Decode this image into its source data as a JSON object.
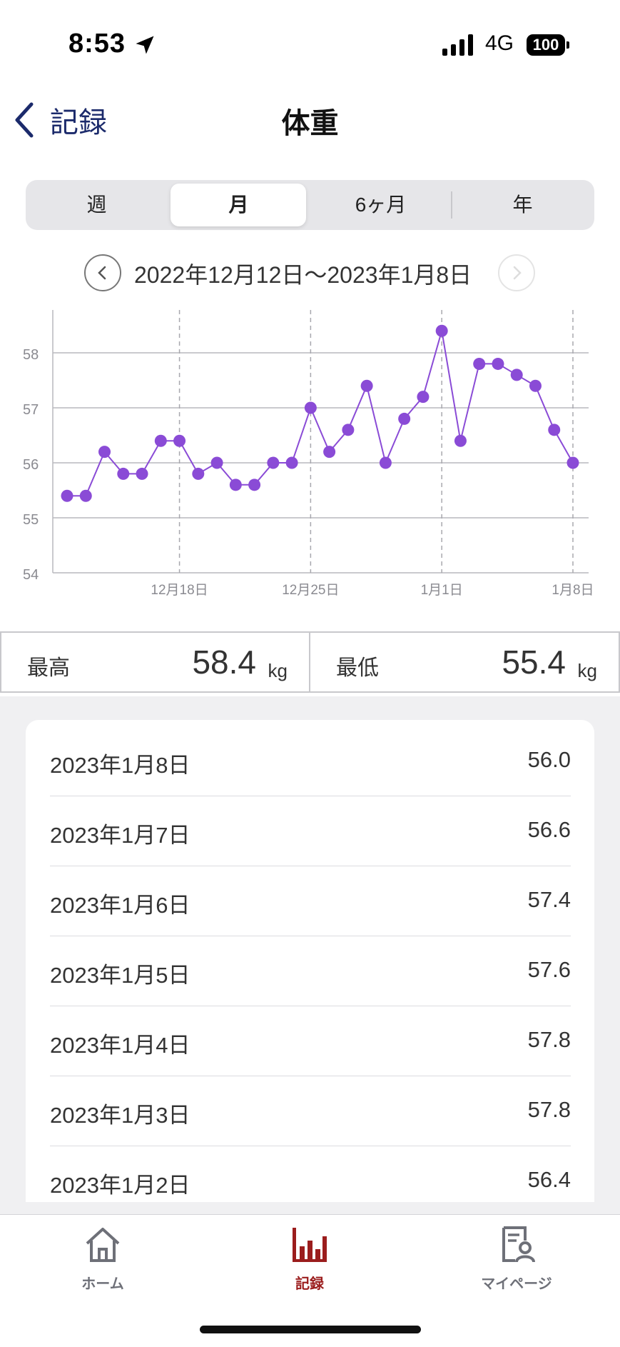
{
  "status_bar": {
    "time": "8:53",
    "network": "4G",
    "battery": "100"
  },
  "nav": {
    "back_label": "記録",
    "title": "体重"
  },
  "segments": {
    "items": [
      "週",
      "月",
      "6ヶ月",
      "年"
    ],
    "selected": "月"
  },
  "range": {
    "label": "2022年12月12日〜2023年1月8日"
  },
  "chart_data": {
    "type": "line",
    "y_ticks": [
      "58",
      "57",
      "56",
      "55",
      "54"
    ],
    "ylim": [
      54,
      58.65
    ],
    "x_tick_labels": [
      "12月18日",
      "12月25日",
      "1月1日",
      "1月8日"
    ],
    "x_tick_indices": [
      6,
      13,
      20,
      27
    ],
    "series": [
      {
        "color": "#8a4bd6",
        "values": [
          55.4,
          55.4,
          56.2,
          55.8,
          55.8,
          56.4,
          56.4,
          55.8,
          56.0,
          55.6,
          55.6,
          56.0,
          56.0,
          57.0,
          56.2,
          56.6,
          57.4,
          56.0,
          56.8,
          57.2,
          58.4,
          56.4,
          57.8,
          57.8,
          57.6,
          57.4,
          56.6,
          56.0
        ]
      }
    ]
  },
  "stats": {
    "max_label": "最高",
    "max_value": "58.4",
    "max_unit": "kg",
    "min_label": "最低",
    "min_value": "55.4",
    "min_unit": "kg"
  },
  "records": [
    {
      "date": "2023年1月8日",
      "value": "56.0"
    },
    {
      "date": "2023年1月7日",
      "value": "56.6"
    },
    {
      "date": "2023年1月6日",
      "value": "57.4"
    },
    {
      "date": "2023年1月5日",
      "value": "57.6"
    },
    {
      "date": "2023年1月4日",
      "value": "57.8"
    },
    {
      "date": "2023年1月3日",
      "value": "57.8"
    },
    {
      "date": "2023年1月2日",
      "value": "56.4"
    }
  ],
  "tabbar": {
    "home": "ホーム",
    "records": "記録",
    "mypage": "マイページ",
    "active_color": "#9b1d1d",
    "inactive_color": "#6e7078"
  }
}
